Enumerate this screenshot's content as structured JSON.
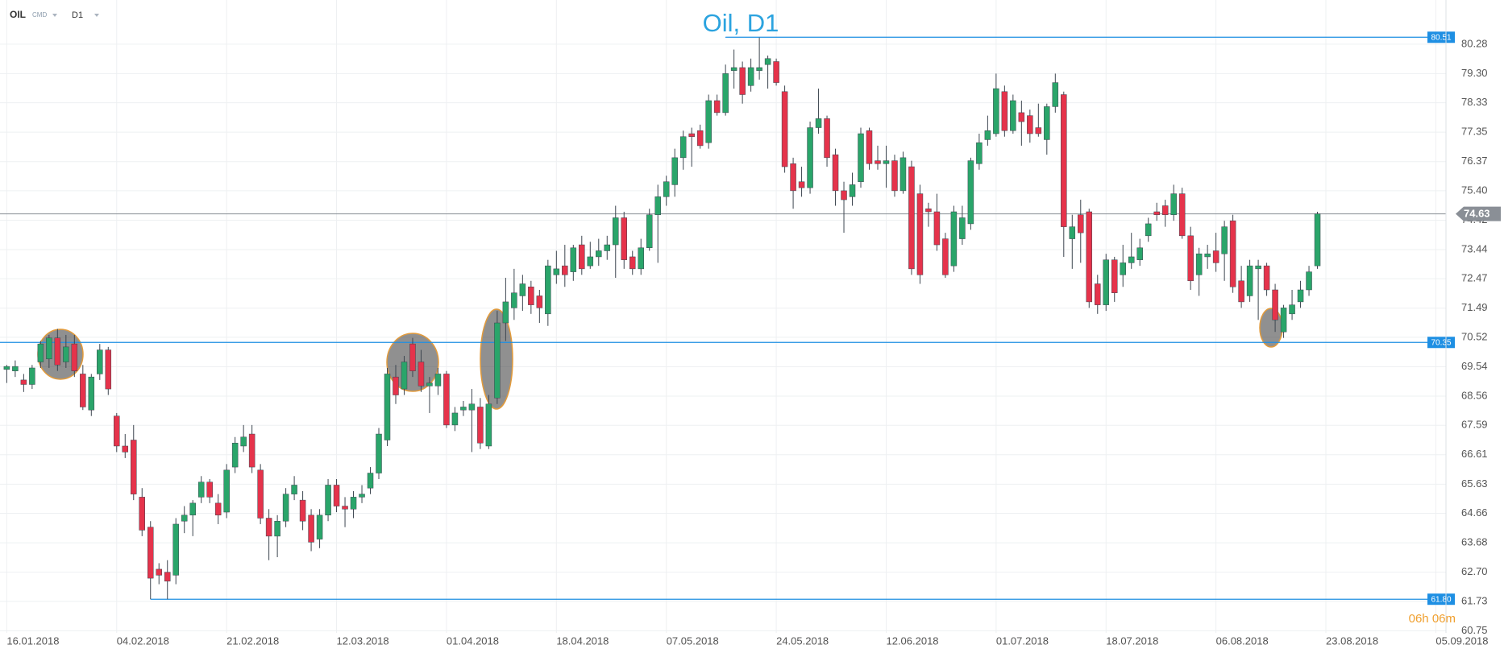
{
  "chart_data": {
    "type": "candlestick",
    "title": "Oil, D1",
    "symbol": "OIL",
    "symbol_type": "CMD",
    "timeframe": "D1",
    "countdown": "06h 06m",
    "up_color": "#2aa56a",
    "down_color": "#e5334b",
    "level_color": "#1e8fe3",
    "last_price_color": "#8a8f96",
    "grid": true,
    "open": [
      69.45,
      69.4,
      69.1,
      68.95,
      69.7,
      69.8,
      70.5,
      69.7,
      70.3,
      69.3,
      68.1,
      69.3,
      70.1,
      67.9,
      66.9,
      67.1,
      65.2,
      64.2,
      62.8,
      62.7,
      62.6,
      64.4,
      64.6,
      65.2,
      65.7,
      65.0,
      64.7,
      66.2,
      66.9,
      67.3,
      66.1,
      64.5,
      63.9,
      64.4,
      65.3,
      65.1,
      64.6,
      63.8,
      64.6,
      65.6,
      64.9,
      64.8,
      65.2,
      65.5,
      66.0,
      67.1,
      69.2,
      68.8,
      70.3,
      69.7,
      68.9,
      68.9,
      69.3,
      67.6,
      68.1,
      68.1,
      68.2,
      66.9,
      68.5,
      71.0,
      71.5,
      71.9,
      72.2,
      71.9,
      71.3,
      72.6,
      72.9,
      72.7,
      73.6,
      72.9,
      73.2,
      73.4,
      73.6,
      74.5,
      73.2,
      72.8,
      73.5,
      74.6,
      75.2,
      75.6,
      76.5,
      77.3,
      77.4,
      77.0,
      78.4,
      78.0,
      79.4,
      79.5,
      78.9,
      79.4,
      79.6,
      79.7,
      78.7,
      76.3,
      75.7,
      75.5,
      77.5,
      77.8,
      76.6,
      75.4,
      75.2,
      75.7,
      77.4,
      76.4,
      76.3,
      76.4,
      75.4,
      76.2,
      75.3,
      74.8,
      74.7,
      73.8,
      72.9,
      73.8,
      74.3,
      76.3,
      77.1,
      77.3,
      78.7,
      77.4,
      78.0,
      77.9,
      77.5,
      77.1,
      78.2,
      78.6,
      73.8,
      74.6,
      74.7,
      72.3,
      71.6,
      73.1,
      72.6,
      73.0,
      73.1,
      73.9,
      74.7,
      74.9,
      74.6,
      75.3,
      73.9,
      72.6,
      73.2,
      73.4,
      73.3,
      74.4,
      72.4,
      71.9,
      72.8,
      72.9,
      72.1,
      70.7,
      71.3,
      71.7,
      72.1,
      72.9
    ],
    "high": [
      69.6,
      69.75,
      69.3,
      69.6,
      70.4,
      70.6,
      70.8,
      70.6,
      70.6,
      69.6,
      69.3,
      70.3,
      70.2,
      68.0,
      67.3,
      67.6,
      65.5,
      64.4,
      63.0,
      63.1,
      64.5,
      64.9,
      65.1,
      65.9,
      65.8,
      65.3,
      66.3,
      67.2,
      67.6,
      67.6,
      66.3,
      64.8,
      64.6,
      65.5,
      65.9,
      65.4,
      64.8,
      64.8,
      65.8,
      65.8,
      65.2,
      65.4,
      65.6,
      66.2,
      67.5,
      69.5,
      69.6,
      69.9,
      70.5,
      70.1,
      69.2,
      69.5,
      69.4,
      68.2,
      68.4,
      68.8,
      68.5,
      68.6,
      71.4,
      72.5,
      72.8,
      72.6,
      72.4,
      72.1,
      73.1,
      73.4,
      73.6,
      73.6,
      73.9,
      73.7,
      73.8,
      73.9,
      74.9,
      74.7,
      73.4,
      73.8,
      74.8,
      75.6,
      75.9,
      76.8,
      77.4,
      77.5,
      77.6,
      78.6,
      78.6,
      79.6,
      80.1,
      79.7,
      79.8,
      80.5,
      79.9,
      79.8,
      78.9,
      76.5,
      76.2,
      77.7,
      78.8,
      77.9,
      76.8,
      75.7,
      76.0,
      77.5,
      77.5,
      76.9,
      76.9,
      76.6,
      76.7,
      76.4,
      75.6,
      75.0,
      75.3,
      74.0,
      74.9,
      74.9,
      76.5,
      77.3,
      77.9,
      79.3,
      78.9,
      78.6,
      78.4,
      78.1,
      78.3,
      78.3,
      79.3,
      78.7,
      74.6,
      75.1,
      74.8,
      72.6,
      73.3,
      73.2,
      73.6,
      74.0,
      73.8,
      74.5,
      75.0,
      75.1,
      75.6,
      75.5,
      74.2,
      73.5,
      73.6,
      74.0,
      74.4,
      74.6,
      72.9,
      73.1,
      73.1,
      73.0,
      72.3,
      71.6,
      72.1,
      72.4,
      72.9,
      74.7
    ],
    "low": [
      69.0,
      69.2,
      68.7,
      68.8,
      69.5,
      69.5,
      69.4,
      69.5,
      69.2,
      68.1,
      67.9,
      69.1,
      68.6,
      66.7,
      66.5,
      65.1,
      63.9,
      61.8,
      62.3,
      61.8,
      62.3,
      64.0,
      63.9,
      65.0,
      65.0,
      64.3,
      64.5,
      66.0,
      66.7,
      66.0,
      64.3,
      63.1,
      63.2,
      64.2,
      65.1,
      64.1,
      63.4,
      63.5,
      64.4,
      64.7,
      64.2,
      64.5,
      65.0,
      65.3,
      65.8,
      66.9,
      68.3,
      68.6,
      69.2,
      68.7,
      68.0,
      68.6,
      67.5,
      67.4,
      67.9,
      66.7,
      66.8,
      66.8,
      68.3,
      70.4,
      71.1,
      71.4,
      71.3,
      71.0,
      70.9,
      72.3,
      72.2,
      72.4,
      72.6,
      72.8,
      72.9,
      73.1,
      72.5,
      72.8,
      72.6,
      72.6,
      73.4,
      73.0,
      74.9,
      75.2,
      76.1,
      76.2,
      76.8,
      76.8,
      77.9,
      77.9,
      78.8,
      78.3,
      78.7,
      79.1,
      78.8,
      78.9,
      76.0,
      74.8,
      75.2,
      75.3,
      77.3,
      76.2,
      74.9,
      74.0,
      74.9,
      75.5,
      76.1,
      76.1,
      75.5,
      75.2,
      75.3,
      72.6,
      72.3,
      74.2,
      73.4,
      72.5,
      72.7,
      73.6,
      74.1,
      76.1,
      76.9,
      77.2,
      77.2,
      77.3,
      76.9,
      77.0,
      77.2,
      76.6,
      78.0,
      73.2,
      72.8,
      73.0,
      71.5,
      71.3,
      71.4,
      71.7,
      72.2,
      72.8,
      72.9,
      73.7,
      74.4,
      74.2,
      74.4,
      73.8,
      72.1,
      71.9,
      72.8,
      72.7,
      72.4,
      72.0,
      71.5,
      71.7,
      71.1,
      71.9,
      70.7,
      70.5,
      71.1,
      71.5,
      71.9,
      72.8
    ],
    "close": [
      69.55,
      69.55,
      68.95,
      69.5,
      70.3,
      70.5,
      69.6,
      70.2,
      69.4,
      68.2,
      69.2,
      70.1,
      68.8,
      66.9,
      66.7,
      65.3,
      64.1,
      62.5,
      62.6,
      62.4,
      64.3,
      64.6,
      65.0,
      65.7,
      65.2,
      64.6,
      66.1,
      67.0,
      67.2,
      66.2,
      64.5,
      63.9,
      64.4,
      65.3,
      65.6,
      64.4,
      63.7,
      64.6,
      65.6,
      64.9,
      64.8,
      65.2,
      65.3,
      66.0,
      67.3,
      69.3,
      68.6,
      69.7,
      69.4,
      68.9,
      69.0,
      69.3,
      67.6,
      68.0,
      68.2,
      68.3,
      67.0,
      68.3,
      71.0,
      71.7,
      72.0,
      72.3,
      71.6,
      71.5,
      72.9,
      72.8,
      72.6,
      73.5,
      72.8,
      73.2,
      73.4,
      73.6,
      74.5,
      73.1,
      72.8,
      73.5,
      74.6,
      75.2,
      75.7,
      76.5,
      77.2,
      77.2,
      76.9,
      78.4,
      78.0,
      79.3,
      79.5,
      78.6,
      79.5,
      79.5,
      79.8,
      79.0,
      76.2,
      75.4,
      75.5,
      77.5,
      77.8,
      76.5,
      75.4,
      75.1,
      75.6,
      77.3,
      76.3,
      76.3,
      76.4,
      75.4,
      76.5,
      72.8,
      72.6,
      74.7,
      73.6,
      72.6,
      74.7,
      74.5,
      76.4,
      77.0,
      77.4,
      78.8,
      77.4,
      78.4,
      77.7,
      77.3,
      77.3,
      78.2,
      79.0,
      74.2,
      74.2,
      74.0,
      71.7,
      71.6,
      73.1,
      72.0,
      73.0,
      73.2,
      73.5,
      74.3,
      74.6,
      74.6,
      75.3,
      73.9,
      72.4,
      73.3,
      73.3,
      73.0,
      74.2,
      72.2,
      71.7,
      72.9,
      72.9,
      72.1,
      71.1,
      71.5,
      71.6,
      72.1,
      72.7,
      74.63
    ],
    "xlim": [
      -0.8,
      170.2
    ],
    "xticks": [
      {
        "value": 0,
        "label": "16.01.2018"
      },
      {
        "value": 13,
        "label": "04.02.2018"
      },
      {
        "value": 26,
        "label": "21.02.2018"
      },
      {
        "value": 39,
        "label": "12.03.2018"
      },
      {
        "value": 52,
        "label": "01.04.2018"
      },
      {
        "value": 65,
        "label": "18.04.2018"
      },
      {
        "value": 78,
        "label": "07.05.2018"
      },
      {
        "value": 91,
        "label": "24.05.2018"
      },
      {
        "value": 104,
        "label": "12.06.2018"
      },
      {
        "value": 117,
        "label": "01.07.2018"
      },
      {
        "value": 130,
        "label": "18.07.2018"
      },
      {
        "value": 143,
        "label": "06.08.2018"
      },
      {
        "value": 156,
        "label": "23.08.2018"
      },
      {
        "value": 169,
        "label": "05.09.2018"
      }
    ],
    "ylim": [
      60.68,
      81.75
    ],
    "yticks": [
      80.28,
      {
        "value": 79.3,
        "label": "79.30"
      },
      78.33,
      77.35,
      76.37,
      {
        "value": 75.4,
        "label": "75.40"
      },
      74.42,
      73.44,
      72.47,
      71.49,
      70.52,
      69.54,
      68.56,
      67.59,
      66.61,
      65.63,
      64.66,
      63.68,
      {
        "value": 62.7,
        "label": "62.70"
      },
      61.73,
      60.75
    ],
    "levels": [
      {
        "value": 80.51,
        "label": "80.51"
      },
      {
        "value": 70.35,
        "label": "70.35"
      },
      {
        "value": 61.8,
        "label": "61.80"
      }
    ],
    "last_price": 74.63
  }
}
